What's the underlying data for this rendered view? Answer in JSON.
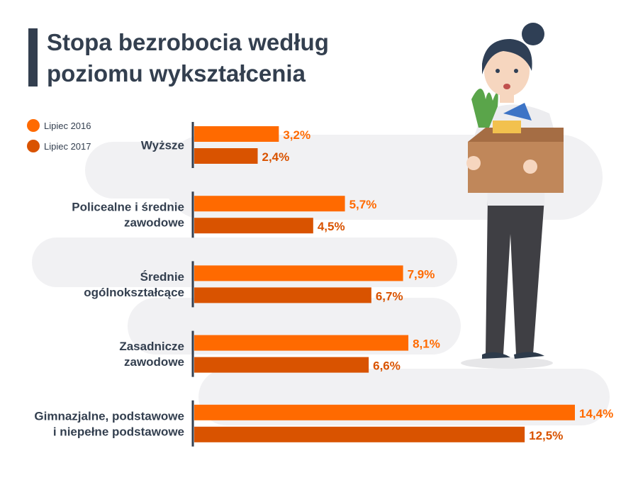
{
  "title_line1": "Stopa bezrobocia według",
  "title_line2": "poziomu wykształcenia",
  "chart_data": {
    "type": "bar",
    "orientation": "horizontal",
    "title": "Stopa bezrobocia według poziomu wykształcenia",
    "categories": [
      [
        "Wyższe"
      ],
      [
        "Policealne i średnie",
        "zawodowe"
      ],
      [
        "Średnie",
        "ogólnokształcące"
      ],
      [
        "Zasadnicze",
        "zawodowe"
      ],
      [
        "Gimnazjalne, podstawowe",
        "i niepełne podstawowe"
      ]
    ],
    "series": [
      {
        "name": "Lipiec 2016",
        "color": "#ff6a00",
        "values": [
          3.2,
          5.7,
          7.9,
          8.1,
          14.4
        ],
        "labels": [
          "3,2%",
          "5,7%",
          "7,9%",
          "8,1%",
          "14,4%"
        ]
      },
      {
        "name": "Lipiec 2017",
        "color": "#d95300",
        "values": [
          2.4,
          4.5,
          6.7,
          6.6,
          12.5
        ],
        "labels": [
          "2,4%",
          "4,5%",
          "6,7%",
          "6,6%",
          "12,5%"
        ]
      }
    ],
    "xlim": [
      0,
      14.4
    ],
    "legend": "top-left"
  }
}
